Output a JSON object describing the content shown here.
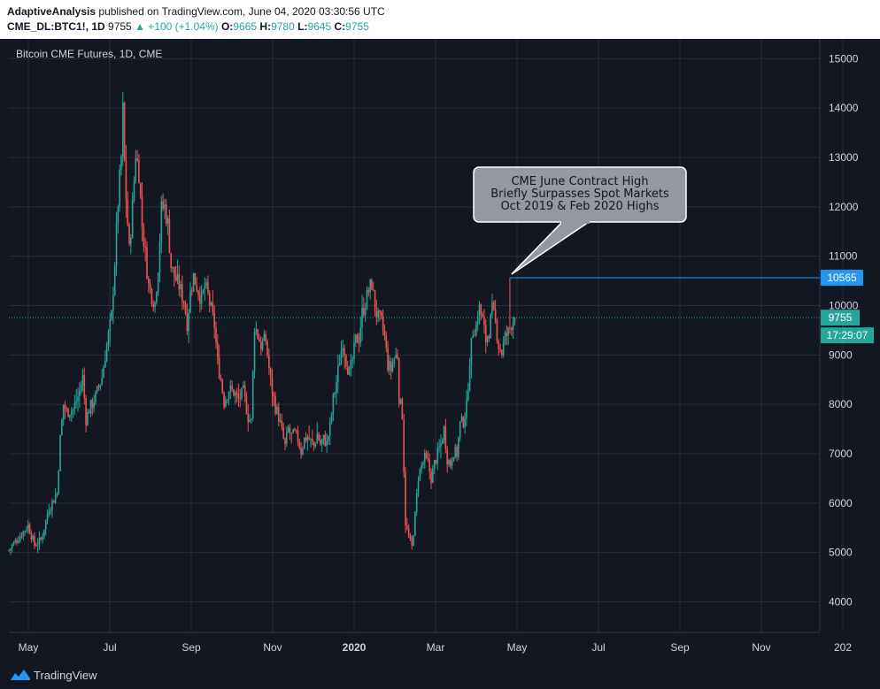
{
  "header": {
    "author": "AdaptiveAnalysis",
    "published": "published on TradingView.com, June 04, 2020 03:30:56 UTC",
    "symbol": "CME_DL:BTC1!, 1D",
    "last": "9755",
    "change": "▲ +100 (+1.04%)",
    "o_label": "O:",
    "o_val": "9665",
    "h_label": "H:",
    "h_val": "9780",
    "l_label": "L:",
    "l_val": "9645",
    "c_label": "C:",
    "c_val": "9755"
  },
  "footer": {
    "brand": "TradingView"
  },
  "colors": {
    "up": "#26a69a",
    "down": "#ef5350",
    "background": "#131722",
    "grid": "#2a2e39",
    "high_line": "#2196f3",
    "annotation_box": "#9598a1"
  },
  "chart_data": {
    "type": "candlestick",
    "title": "Bitcoin CME Futures, 1D, CME",
    "ylim": [
      3400,
      15400
    ],
    "yticks": [
      4000,
      5000,
      6000,
      7000,
      8000,
      9000,
      10000,
      11000,
      12000,
      13000,
      14000,
      15000
    ],
    "xlabels": [
      "May",
      "Jul",
      "Sep",
      "Nov",
      "2020",
      "Mar",
      "May",
      "Jul",
      "Sep",
      "Nov",
      "202"
    ],
    "grid": true,
    "path_points": [
      [
        0,
        5050
      ],
      [
        6,
        5300
      ],
      [
        12,
        5550
      ],
      [
        16,
        5150
      ],
      [
        20,
        5250
      ],
      [
        25,
        5900
      ],
      [
        30,
        6200
      ],
      [
        32,
        7300
      ],
      [
        34,
        8000
      ],
      [
        36,
        7850
      ],
      [
        40,
        7900
      ],
      [
        44,
        8250
      ],
      [
        46,
        8550
      ],
      [
        48,
        7700
      ],
      [
        50,
        7900
      ],
      [
        54,
        8150
      ],
      [
        58,
        8550
      ],
      [
        60,
        9000
      ],
      [
        62,
        9400
      ],
      [
        64,
        9800
      ],
      [
        66,
        10900
      ],
      [
        68,
        12100
      ],
      [
        70,
        13000
      ],
      [
        71,
        13950
      ],
      [
        72,
        12900
      ],
      [
        73,
        12200
      ],
      [
        75,
        11100
      ],
      [
        77,
        12000
      ],
      [
        79,
        13100
      ],
      [
        81,
        12700
      ],
      [
        83,
        11600
      ],
      [
        85,
        11050
      ],
      [
        87,
        10400
      ],
      [
        89,
        10200
      ],
      [
        91,
        10050
      ],
      [
        93,
        10800
      ],
      [
        95,
        11950
      ],
      [
        97,
        12000
      ],
      [
        99,
        11650
      ],
      [
        101,
        10800
      ],
      [
        103,
        10600
      ],
      [
        106,
        10400
      ],
      [
        109,
        10100
      ],
      [
        111,
        9650
      ],
      [
        113,
        10250
      ],
      [
        115,
        10600
      ],
      [
        118,
        10300
      ],
      [
        120,
        10100
      ],
      [
        122,
        10400
      ],
      [
        124,
        10200
      ],
      [
        126,
        9900
      ],
      [
        128,
        9600
      ],
      [
        130,
        8850
      ],
      [
        132,
        8500
      ],
      [
        134,
        8050
      ],
      [
        137,
        8300
      ],
      [
        140,
        8250
      ],
      [
        143,
        8100
      ],
      [
        146,
        8250
      ],
      [
        149,
        7750
      ],
      [
        151,
        7650
      ],
      [
        153,
        9600
      ],
      [
        155,
        9400
      ],
      [
        157,
        9200
      ],
      [
        160,
        9300
      ],
      [
        163,
        8450
      ],
      [
        166,
        7950
      ],
      [
        168,
        7750
      ],
      [
        170,
        7450
      ],
      [
        172,
        7150
      ],
      [
        174,
        7500
      ],
      [
        176,
        7350
      ],
      [
        178,
        7400
      ],
      [
        180,
        7300
      ],
      [
        182,
        7050
      ],
      [
        184,
        7300
      ],
      [
        186,
        7350
      ],
      [
        188,
        7250
      ],
      [
        190,
        7150
      ],
      [
        192,
        7400
      ],
      [
        194,
        7200
      ],
      [
        196,
        7300
      ],
      [
        198,
        7200
      ],
      [
        200,
        7550
      ],
      [
        202,
        8100
      ],
      [
        204,
        8450
      ],
      [
        206,
        8900
      ],
      [
        208,
        9300
      ],
      [
        210,
        8900
      ],
      [
        212,
        8600
      ],
      [
        214,
        8900
      ],
      [
        216,
        9300
      ],
      [
        218,
        9350
      ],
      [
        220,
        9850
      ],
      [
        222,
        10050
      ],
      [
        224,
        10300
      ],
      [
        226,
        10450
      ],
      [
        228,
        9950
      ],
      [
        230,
        9750
      ],
      [
        232,
        9650
      ],
      [
        234,
        9350
      ],
      [
        236,
        8800
      ],
      [
        238,
        8700
      ],
      [
        240,
        8950
      ],
      [
        242,
        9000
      ],
      [
        243,
        8150
      ],
      [
        245,
        7800
      ],
      [
        247,
        5600
      ],
      [
        249,
        5300
      ],
      [
        251,
        5100
      ],
      [
        253,
        5750
      ],
      [
        255,
        6550
      ],
      [
        257,
        6750
      ],
      [
        259,
        6900
      ],
      [
        261,
        6800
      ],
      [
        263,
        6500
      ],
      [
        265,
        6800
      ],
      [
        267,
        7000
      ],
      [
        269,
        7200
      ],
      [
        271,
        7500
      ],
      [
        273,
        6900
      ],
      [
        275,
        6800
      ],
      [
        277,
        7050
      ],
      [
        279,
        7000
      ],
      [
        281,
        7600
      ],
      [
        283,
        7650
      ],
      [
        285,
        7950
      ],
      [
        287,
        8900
      ],
      [
        289,
        9500
      ],
      [
        291,
        9600
      ],
      [
        293,
        9950
      ],
      [
        295,
        9700
      ],
      [
        297,
        9300
      ],
      [
        299,
        9500
      ],
      [
        301,
        9900
      ],
      [
        303,
        9650
      ],
      [
        305,
        9200
      ],
      [
        307,
        9050
      ],
      [
        309,
        9350
      ],
      [
        311,
        9450
      ],
      [
        313,
        9650
      ],
      [
        315,
        9755
      ]
    ],
    "x_range": [
      0,
      505
    ],
    "high_marker": {
      "value": 10565,
      "label": "10565"
    },
    "last_price": {
      "value": 9755,
      "label": "9755",
      "countdown": "17:29:07"
    },
    "annotation": {
      "lines": [
        "CME June Contract High",
        "Briefly Surpasses Spot Markets",
        "Oct 2019 & Feb 2020 Highs"
      ],
      "target_value": 10565
    }
  }
}
